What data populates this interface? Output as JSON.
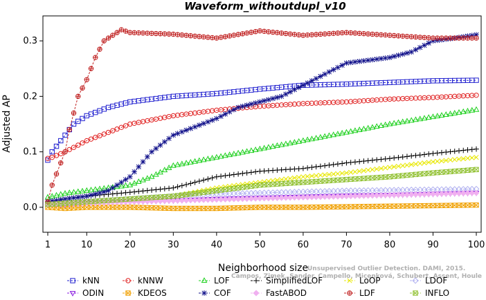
{
  "chart_data": {
    "type": "line",
    "title": "Waveform_withoutdupl_v10",
    "xlabel": "Neighborhood size",
    "ylabel": "Adjusted AP",
    "xlim": [
      1,
      100
    ],
    "ylim": [
      -0.045,
      0.345
    ],
    "x_ticks": [
      1,
      10,
      20,
      30,
      40,
      50,
      60,
      70,
      80,
      90,
      100
    ],
    "x_tick_labels": [
      "1",
      "10",
      "20",
      "30",
      "40",
      "50",
      "60",
      "70",
      "80",
      "90",
      "100"
    ],
    "y_ticks": [
      0.0,
      0.1,
      0.2,
      0.3
    ],
    "y_tick_labels": [
      "0.0",
      "0.1",
      "0.2",
      "0.3"
    ],
    "grid": false,
    "legend_position": "bottom",
    "watermark": {
      "line1": "Unsupervised Outlier Detection. DAMI, 2015.",
      "line2": "Campos, Zimek, Sander, Campello, Micenková, Schubert, Assent, Houle"
    },
    "series": [
      {
        "name": "kNN",
        "color": "#1f1fcf",
        "marker": "square",
        "anchors": [
          [
            1,
            0.085
          ],
          [
            2,
            0.1
          ],
          [
            3,
            0.11
          ],
          [
            5,
            0.13
          ],
          [
            7,
            0.15
          ],
          [
            10,
            0.165
          ],
          [
            15,
            0.18
          ],
          [
            20,
            0.19
          ],
          [
            25,
            0.195
          ],
          [
            30,
            0.2
          ],
          [
            40,
            0.205
          ],
          [
            50,
            0.213
          ],
          [
            60,
            0.22
          ],
          [
            70,
            0.222
          ],
          [
            80,
            0.225
          ],
          [
            90,
            0.228
          ],
          [
            100,
            0.229
          ]
        ]
      },
      {
        "name": "kNNW",
        "color": "#e02020",
        "marker": "circle",
        "anchors": [
          [
            1,
            0.088
          ],
          [
            2,
            0.09
          ],
          [
            5,
            0.1
          ],
          [
            10,
            0.12
          ],
          [
            15,
            0.135
          ],
          [
            20,
            0.15
          ],
          [
            30,
            0.165
          ],
          [
            40,
            0.175
          ],
          [
            50,
            0.182
          ],
          [
            60,
            0.187
          ],
          [
            70,
            0.19
          ],
          [
            80,
            0.195
          ],
          [
            90,
            0.198
          ],
          [
            100,
            0.202
          ]
        ]
      },
      {
        "name": "LOF",
        "color": "#1ed01e",
        "marker": "triangle",
        "anchors": [
          [
            1,
            0.018
          ],
          [
            5,
            0.025
          ],
          [
            10,
            0.03
          ],
          [
            20,
            0.04
          ],
          [
            25,
            0.055
          ],
          [
            30,
            0.075
          ],
          [
            40,
            0.09
          ],
          [
            50,
            0.105
          ],
          [
            60,
            0.12
          ],
          [
            70,
            0.135
          ],
          [
            80,
            0.15
          ],
          [
            90,
            0.163
          ],
          [
            100,
            0.176
          ]
        ]
      },
      {
        "name": "SimplifiedLOF",
        "color": "#000000",
        "marker": "plus",
        "anchors": [
          [
            1,
            0.01
          ],
          [
            5,
            0.015
          ],
          [
            10,
            0.02
          ],
          [
            20,
            0.027
          ],
          [
            30,
            0.035
          ],
          [
            40,
            0.055
          ],
          [
            50,
            0.065
          ],
          [
            60,
            0.07
          ],
          [
            70,
            0.08
          ],
          [
            80,
            0.088
          ],
          [
            90,
            0.097
          ],
          [
            100,
            0.105
          ]
        ]
      },
      {
        "name": "LoOP",
        "color": "#e8e800",
        "marker": "x",
        "anchors": [
          [
            1,
            0.005
          ],
          [
            5,
            0.008
          ],
          [
            10,
            0.01
          ],
          [
            20,
            0.015
          ],
          [
            30,
            0.02
          ],
          [
            40,
            0.035
          ],
          [
            50,
            0.045
          ],
          [
            60,
            0.055
          ],
          [
            70,
            0.062
          ],
          [
            80,
            0.072
          ],
          [
            90,
            0.082
          ],
          [
            100,
            0.09
          ]
        ]
      },
      {
        "name": "LDOF",
        "color": "#b0b0f0",
        "marker": "diamond",
        "anchors": [
          [
            1,
            0.005
          ],
          [
            10,
            0.01
          ],
          [
            20,
            0.015
          ],
          [
            30,
            0.02
          ],
          [
            40,
            0.024
          ],
          [
            50,
            0.026
          ],
          [
            60,
            0.028
          ],
          [
            70,
            0.03
          ],
          [
            80,
            0.031
          ],
          [
            90,
            0.032
          ],
          [
            100,
            0.033
          ]
        ]
      },
      {
        "name": "ODIN",
        "color": "#8a1ee0",
        "marker": "triangle-down",
        "anchors": [
          [
            1,
            0.005
          ],
          [
            5,
            0.005
          ],
          [
            10,
            0.008
          ],
          [
            20,
            0.01
          ],
          [
            30,
            0.012
          ],
          [
            40,
            0.015
          ],
          [
            50,
            0.017
          ],
          [
            60,
            0.019
          ],
          [
            70,
            0.021
          ],
          [
            80,
            0.022
          ],
          [
            90,
            0.024
          ],
          [
            100,
            0.026
          ]
        ]
      },
      {
        "name": "KDEOS",
        "color": "#f0a000",
        "marker": "square-x",
        "anchors": [
          [
            1,
            0.0
          ],
          [
            5,
            -0.002
          ],
          [
            10,
            0.0
          ],
          [
            20,
            0.0
          ],
          [
            30,
            -0.002
          ],
          [
            40,
            -0.002
          ],
          [
            50,
            0.0
          ],
          [
            60,
            0.0
          ],
          [
            70,
            0.001
          ],
          [
            80,
            0.002
          ],
          [
            90,
            0.003
          ],
          [
            100,
            0.004
          ]
        ]
      },
      {
        "name": "COF",
        "color": "#10108a",
        "marker": "asterisk",
        "anchors": [
          [
            1,
            0.01
          ],
          [
            5,
            0.015
          ],
          [
            10,
            0.02
          ],
          [
            15,
            0.03
          ],
          [
            20,
            0.055
          ],
          [
            25,
            0.1
          ],
          [
            30,
            0.13
          ],
          [
            35,
            0.145
          ],
          [
            40,
            0.16
          ],
          [
            45,
            0.18
          ],
          [
            50,
            0.19
          ],
          [
            55,
            0.2
          ],
          [
            60,
            0.22
          ],
          [
            65,
            0.24
          ],
          [
            70,
            0.26
          ],
          [
            75,
            0.265
          ],
          [
            80,
            0.27
          ],
          [
            85,
            0.28
          ],
          [
            90,
            0.3
          ],
          [
            95,
            0.305
          ],
          [
            100,
            0.311
          ]
        ]
      },
      {
        "name": "FastABOD",
        "color": "#f0b0f0",
        "marker": "diamond-filled",
        "anchors": [
          [
            1,
            0.005
          ],
          [
            10,
            0.008
          ],
          [
            20,
            0.01
          ],
          [
            30,
            0.012
          ],
          [
            40,
            0.014
          ],
          [
            50,
            0.016
          ],
          [
            60,
            0.018
          ],
          [
            70,
            0.02
          ],
          [
            80,
            0.022
          ],
          [
            90,
            0.024
          ],
          [
            100,
            0.026
          ]
        ]
      },
      {
        "name": "LDF",
        "color": "#c02020",
        "marker": "circle-plus",
        "anchors": [
          [
            1,
            0.01
          ],
          [
            2,
            0.04
          ],
          [
            3,
            0.06
          ],
          [
            4,
            0.08
          ],
          [
            5,
            0.1
          ],
          [
            6,
            0.14
          ],
          [
            7,
            0.17
          ],
          [
            8,
            0.2
          ],
          [
            10,
            0.23
          ],
          [
            12,
            0.27
          ],
          [
            14,
            0.3
          ],
          [
            16,
            0.31
          ],
          [
            18,
            0.32
          ],
          [
            20,
            0.315
          ],
          [
            30,
            0.312
          ],
          [
            40,
            0.305
          ],
          [
            50,
            0.318
          ],
          [
            60,
            0.31
          ],
          [
            70,
            0.315
          ],
          [
            80,
            0.31
          ],
          [
            90,
            0.305
          ],
          [
            100,
            0.305
          ]
        ]
      },
      {
        "name": "INFLO",
        "color": "#90c030",
        "marker": "square-cross",
        "anchors": [
          [
            1,
            0.005
          ],
          [
            10,
            0.01
          ],
          [
            20,
            0.015
          ],
          [
            30,
            0.02
          ],
          [
            40,
            0.03
          ],
          [
            50,
            0.04
          ],
          [
            60,
            0.045
          ],
          [
            70,
            0.05
          ],
          [
            80,
            0.055
          ],
          [
            90,
            0.062
          ],
          [
            100,
            0.068
          ]
        ]
      }
    ]
  }
}
